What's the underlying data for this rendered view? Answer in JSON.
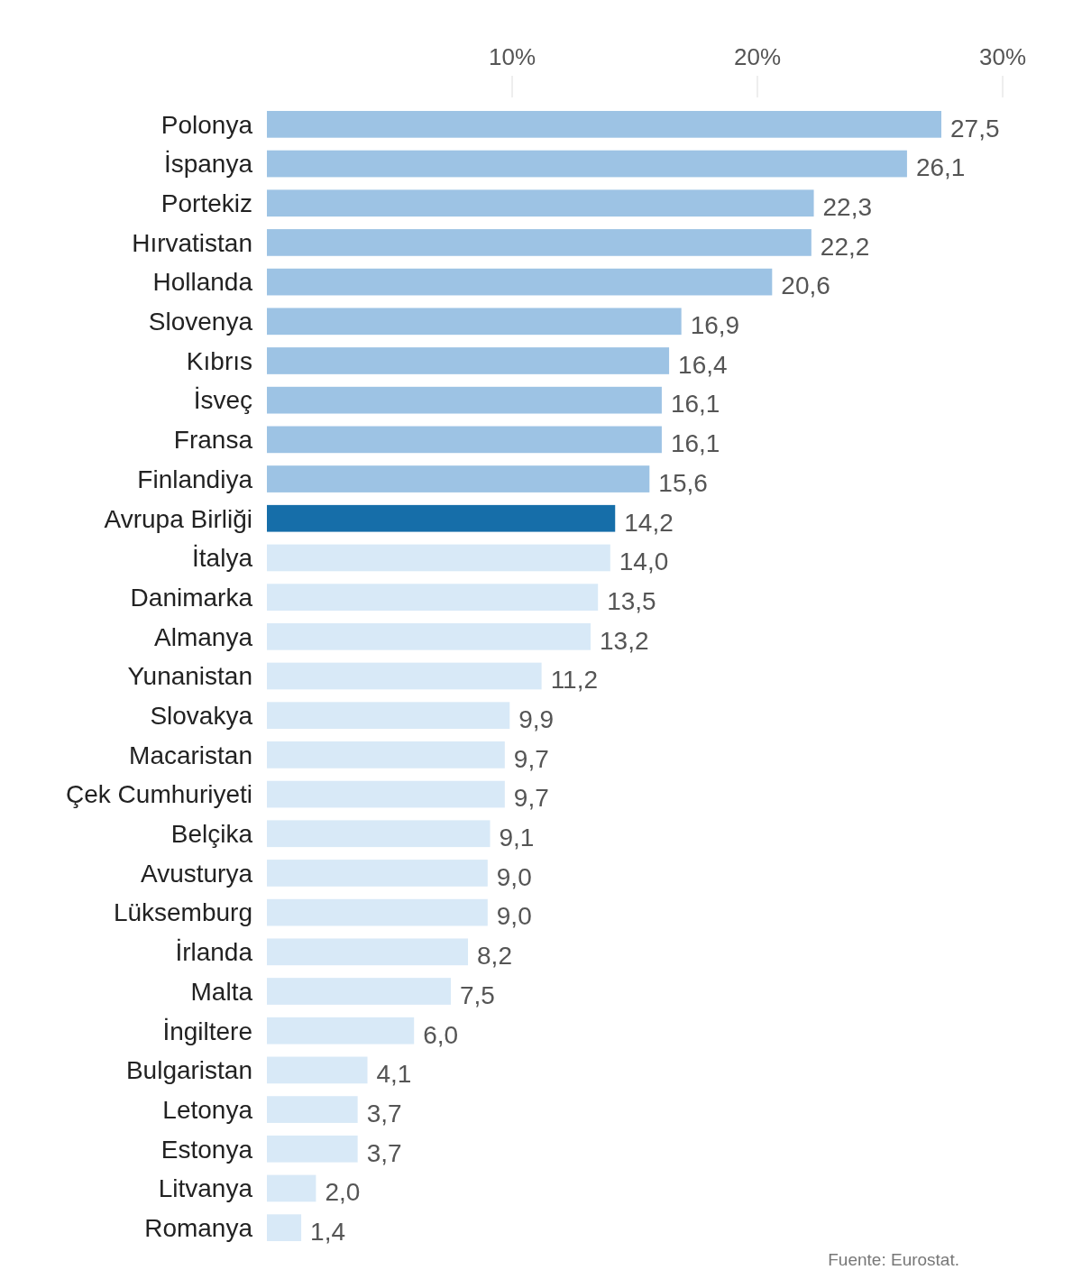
{
  "chart_data": {
    "type": "bar",
    "orientation": "horizontal",
    "categories": [
      "Polonya",
      "İspanya",
      "Portekiz",
      "Hırvatistan",
      "Hollanda",
      "Slovenya",
      "Kıbrıs",
      "İsveç",
      "Fransa",
      "Finlandiya",
      "Avrupa Birliği",
      "İtalya",
      "Danimarka",
      "Almanya",
      "Yunanistan",
      "Slovakya",
      "Macaristan",
      "Çek Cumhuriyeti",
      "Belçika",
      "Avusturya",
      "Lüksemburg",
      "İrlanda",
      "Malta",
      "İngiltere",
      "Bulgaristan",
      "Letonya",
      "Estonya",
      "Litvanya",
      "Romanya"
    ],
    "values": [
      27.5,
      26.1,
      22.3,
      22.2,
      20.6,
      16.9,
      16.4,
      16.1,
      16.1,
      15.6,
      14.2,
      14.0,
      13.5,
      13.2,
      11.2,
      9.9,
      9.7,
      9.7,
      9.1,
      9.0,
      9.0,
      8.2,
      7.5,
      6.0,
      4.1,
      3.7,
      3.7,
      2.0,
      1.4
    ],
    "value_labels": [
      "27,5",
      "26,1",
      "22,3",
      "22,2",
      "20,6",
      "16,9",
      "16,4",
      "16,1",
      "16,1",
      "15,6",
      "14,2",
      "14,0",
      "13,5",
      "13,2",
      "11,2",
      "9,9",
      "9,7",
      "9,7",
      "9,1",
      "9,0",
      "9,0",
      "8,2",
      "7,5",
      "6,0",
      "4,1",
      "3,7",
      "3,7",
      "2,0",
      "1,4"
    ],
    "colors": [
      "#9dc3e4",
      "#9dc3e4",
      "#9dc3e4",
      "#9dc3e4",
      "#9dc3e4",
      "#9dc3e4",
      "#9dc3e4",
      "#9dc3e4",
      "#9dc3e4",
      "#9dc3e4",
      "#166ea9",
      "#d8e9f7",
      "#d8e9f7",
      "#d8e9f7",
      "#d8e9f7",
      "#d8e9f7",
      "#d8e9f7",
      "#d8e9f7",
      "#d8e9f7",
      "#d8e9f7",
      "#d8e9f7",
      "#d8e9f7",
      "#d8e9f7",
      "#d8e9f7",
      "#d8e9f7",
      "#d8e9f7",
      "#d8e9f7",
      "#d8e9f7",
      "#d8e9f7"
    ],
    "xlim": [
      0,
      30
    ],
    "xticks": [
      {
        "value": 10,
        "label": "10%"
      },
      {
        "value": 20,
        "label": "20%"
      },
      {
        "value": 30,
        "label": "30%"
      }
    ],
    "annotations": [
      "Fuente: Eurostat."
    ]
  }
}
